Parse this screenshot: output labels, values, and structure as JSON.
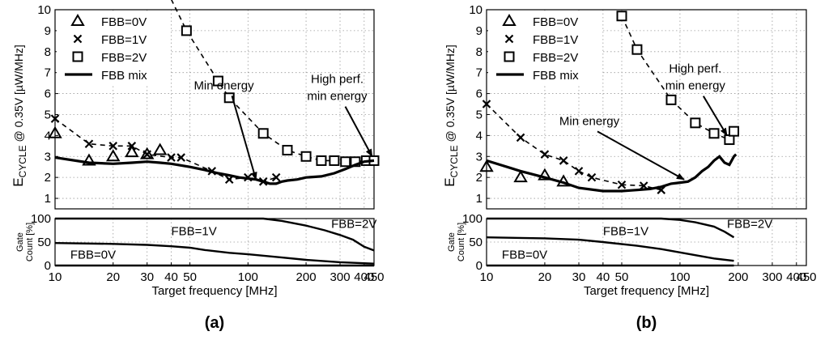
{
  "chart_data": [
    {
      "type": "line",
      "panel_label": "(a)",
      "xlabel": "Target frequency [MHz]",
      "x_scale": "log",
      "xlim": [
        10,
        450
      ],
      "x_ticks": [
        10,
        20,
        30,
        40,
        50,
        100,
        200,
        300,
        400,
        450
      ],
      "grid": true,
      "top": {
        "ylabel_main": "E",
        "ylabel_sub": "CYCLE",
        "ylabel_rest": " @ 0.35V [µW/MHz]",
        "ylim": [
          0.5,
          10
        ],
        "y_ticks": [
          1,
          2,
          3,
          4,
          5,
          6,
          7,
          8,
          9,
          10
        ],
        "legend_position": "top-left",
        "series": [
          {
            "name": "FBB=0V",
            "marker": "triangle",
            "line": "none",
            "x": [
              10,
              15,
              20,
              25,
              30,
              35
            ],
            "y": [
              4.1,
              2.8,
              3.0,
              3.2,
              3.1,
              3.3
            ]
          },
          {
            "name": "FBB=1V",
            "marker": "x",
            "line": "dashed",
            "x": [
              10,
              15,
              20,
              25,
              30,
              40,
              45,
              65,
              80,
              100,
              120,
              140
            ],
            "y": [
              4.8,
              3.6,
              3.5,
              3.5,
              3.1,
              2.95,
              2.95,
              2.3,
              1.9,
              2.0,
              1.8,
              2.0
            ]
          },
          {
            "name": "FBB=2V",
            "marker": "square",
            "line": "dashed",
            "x": [
              40,
              48,
              70,
              80,
              120,
              160,
              200,
              240,
              280,
              320,
              360,
              410,
              450
            ],
            "y": [
              10.5,
              9.0,
              6.6,
              5.8,
              4.1,
              3.3,
              3.0,
              2.8,
              2.8,
              2.75,
              2.75,
              2.8,
              2.8
            ]
          },
          {
            "name": "FBB mix",
            "marker": "none",
            "line": "solid",
            "x": [
              10,
              15,
              20,
              25,
              30,
              35,
              40,
              50,
              60,
              70,
              80,
              90,
              100,
              110,
              120,
              130,
              140,
              150,
              160,
              180,
              200,
              240,
              280,
              320,
              360,
              400,
              450
            ],
            "y": [
              2.95,
              2.7,
              2.65,
              2.7,
              2.75,
              2.7,
              2.65,
              2.5,
              2.35,
              2.2,
              2.1,
              2.0,
              1.95,
              1.9,
              1.8,
              1.7,
              1.7,
              1.8,
              1.85,
              1.9,
              2.0,
              2.05,
              2.2,
              2.4,
              2.6,
              2.75,
              2.8
            ]
          }
        ],
        "annotations": [
          {
            "lines": [
              "Min energy"
            ],
            "x": 75,
            "y": 6.2,
            "arrow_to": [
              110,
              1.9
            ]
          },
          {
            "lines": [
              "High perf.",
              "min energy"
            ],
            "x": 290,
            "y": 6.5,
            "arrow_to": [
              440,
              3.0
            ]
          }
        ]
      },
      "bottom": {
        "ylabel_lines": [
          "Gate",
          "Count [%]"
        ],
        "ylim": [
          0,
          100
        ],
        "y_ticks": [
          0,
          50,
          100
        ],
        "series": [
          {
            "name": "FBB=2V",
            "x": [
              10,
              20,
              50,
              100,
              120,
              150,
              200,
              250,
              300,
              350,
              400,
              450
            ],
            "y": [
              100,
              100,
              100,
              100,
              100,
              95,
              85,
              75,
              65,
              55,
              40,
              32
            ]
          },
          {
            "name": "FBB=1V",
            "x": [
              10,
              20,
              30,
              40,
              50,
              60,
              80,
              100,
              150,
              200,
              300,
              450
            ],
            "y": [
              48,
              46,
              44,
              41,
              38,
              33,
              27,
              24,
              17,
              12,
              7,
              4
            ]
          },
          {
            "name": "FBB=0V",
            "x": [
              10,
              450
            ],
            "y": [
              0,
              0
            ]
          }
        ],
        "labels": [
          {
            "text": "FBB=2V",
            "x": 270,
            "y": 80
          },
          {
            "text": "FBB=1V",
            "x": 40,
            "y": 65
          },
          {
            "text": "FBB=0V",
            "x": 12,
            "y": 15
          }
        ]
      }
    },
    {
      "type": "line",
      "panel_label": "(b)",
      "xlabel": "Target frequency [MHz]",
      "x_scale": "log",
      "xlim": [
        10,
        450
      ],
      "x_ticks": [
        10,
        20,
        30,
        40,
        50,
        100,
        200,
        300,
        400,
        450
      ],
      "grid": true,
      "top": {
        "ylabel_main": "E",
        "ylabel_sub": "CYCLE",
        "ylabel_rest": " @ 0.35V [µW/MHz]",
        "ylim": [
          0.5,
          10
        ],
        "y_ticks": [
          1,
          2,
          3,
          4,
          5,
          6,
          7,
          8,
          9,
          10
        ],
        "legend_position": "top-left",
        "series": [
          {
            "name": "FBB=0V",
            "marker": "triangle",
            "line": "none",
            "x": [
              10,
              15,
              20,
              25
            ],
            "y": [
              2.5,
              2.0,
              2.1,
              1.8
            ]
          },
          {
            "name": "FBB=1V",
            "marker": "x",
            "line": "dashed",
            "x": [
              10,
              15,
              20,
              25,
              30,
              35,
              50,
              65,
              80
            ],
            "y": [
              5.5,
              3.9,
              3.1,
              2.8,
              2.3,
              2.0,
              1.65,
              1.6,
              1.4
            ]
          },
          {
            "name": "FBB=2V",
            "marker": "square",
            "line": "dashed",
            "x": [
              50,
              60,
              90,
              120,
              150,
              180,
              190
            ],
            "y": [
              9.7,
              8.1,
              5.7,
              4.6,
              4.1,
              3.8,
              4.2
            ]
          },
          {
            "name": "FBB mix",
            "marker": "none",
            "line": "solid",
            "x": [
              10,
              15,
              20,
              25,
              30,
              40,
              50,
              60,
              70,
              80,
              90,
              100,
              110,
              120,
              130,
              140,
              150,
              160,
              170,
              180,
              190,
              195
            ],
            "y": [
              2.8,
              2.3,
              2.0,
              1.75,
              1.5,
              1.35,
              1.35,
              1.4,
              1.45,
              1.55,
              1.7,
              1.75,
              1.8,
              2.0,
              2.3,
              2.5,
              2.8,
              3.0,
              2.7,
              2.6,
              3.0,
              3.1
            ]
          }
        ],
        "annotations": [
          {
            "lines": [
              "Min energy"
            ],
            "x": 34,
            "y": 4.5,
            "arrow_to": [
              105,
              1.9
            ]
          },
          {
            "lines": [
              "High perf.",
              "min energy"
            ],
            "x": 120,
            "y": 7.0,
            "arrow_to": [
              175,
              4.0
            ]
          }
        ]
      },
      "bottom": {
        "ylabel_lines": [
          "Gate",
          "Count [%]"
        ],
        "ylim": [
          0,
          100
        ],
        "y_ticks": [
          0,
          50,
          100
        ],
        "series": [
          {
            "name": "FBB=2V",
            "x": [
              10,
              30,
              60,
              80,
              100,
              120,
              150,
              170,
              190
            ],
            "y": [
              100,
              100,
              100,
              100,
              97,
              92,
              83,
              72,
              60
            ]
          },
          {
            "name": "FBB=1V",
            "x": [
              10,
              20,
              30,
              40,
              60,
              80,
              100,
              120,
              150,
              190
            ],
            "y": [
              60,
              58,
              55,
              50,
              42,
              35,
              28,
              22,
              15,
              10
            ]
          },
          {
            "name": "FBB=0V",
            "x": [
              10,
              190
            ],
            "y": [
              0,
              0
            ]
          }
        ],
        "labels": [
          {
            "text": "FBB=2V",
            "x": 175,
            "y": 80
          },
          {
            "text": "FBB=1V",
            "x": 40,
            "y": 65
          },
          {
            "text": "FBB=0V",
            "x": 12,
            "y": 15
          }
        ]
      }
    }
  ]
}
